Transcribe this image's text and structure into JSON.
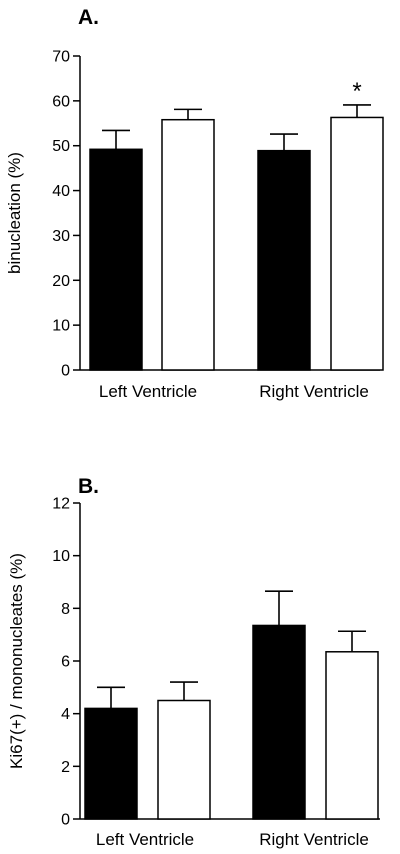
{
  "chart_data": [
    {
      "type": "bar",
      "panel_label": "A.",
      "categories": [
        "Left Ventricle",
        "Right Ventricle"
      ],
      "ylabel": "binucleation  (%)",
      "ylim": [
        0,
        70
      ],
      "yticks": [
        0,
        10,
        20,
        30,
        40,
        50,
        60,
        70
      ],
      "grid": false,
      "colors": [
        "#000000",
        "#ffffff"
      ],
      "series": [
        {
          "values": [
            49.2,
            48.9
          ],
          "errors": [
            4.2,
            3.7
          ]
        },
        {
          "values": [
            55.8,
            56.3
          ],
          "errors": [
            2.3,
            2.8
          ]
        }
      ],
      "annotations": [
        {
          "text": "*",
          "category": 1,
          "series": 1
        }
      ]
    },
    {
      "type": "bar",
      "panel_label": "B.",
      "categories": [
        "Left Ventricle",
        "Right Ventricle"
      ],
      "ylabel": "Ki67(+)  / mononucleates (%)",
      "ylim": [
        0,
        12
      ],
      "yticks": [
        0,
        2,
        4,
        6,
        8,
        10,
        12
      ],
      "grid": false,
      "colors": [
        "#000000",
        "#ffffff"
      ],
      "series": [
        {
          "values": [
            4.2,
            7.35
          ],
          "errors": [
            0.8,
            1.3
          ]
        },
        {
          "values": [
            4.5,
            6.35
          ],
          "errors": [
            0.7,
            0.78
          ]
        }
      ],
      "annotations": []
    }
  ]
}
